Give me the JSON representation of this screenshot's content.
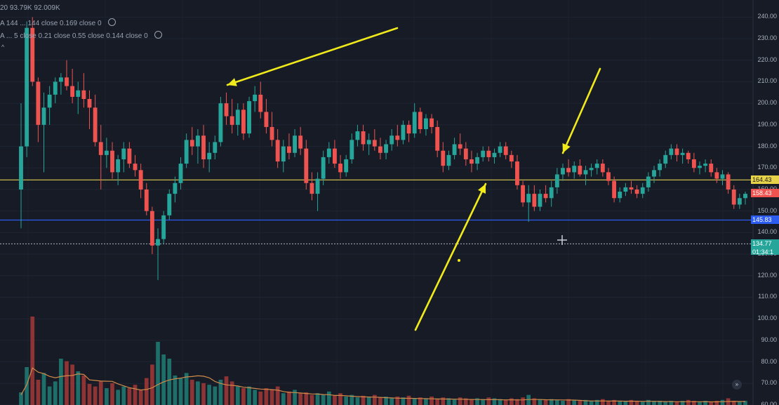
{
  "chart_data": {
    "type": "candlestick",
    "ylim": [
      60,
      245
    ],
    "y_ticks": [
      "240.00",
      "230.00",
      "220.00",
      "210.00",
      "200.00",
      "190.00",
      "180.00",
      "170.00",
      "160.00",
      "150.00",
      "140.00",
      "130.00",
      "120.00",
      "110.00",
      "100.00",
      "90.00",
      "80.00",
      "70.00",
      "60.00"
    ],
    "horizontal_lines": [
      {
        "name": "level-164",
        "price": 164.43,
        "label": "164.43",
        "color": "#c9b84a",
        "tag_bg": "#e6d34a",
        "tag_fg": "#1a1a1a"
      },
      {
        "name": "level-145",
        "price": 145.83,
        "label": "145.83",
        "color": "#2d5cf0",
        "tag_bg": "#2d5cf0",
        "tag_fg": "#ffffff"
      },
      {
        "name": "level-134",
        "price": 134.77,
        "label": "134.77",
        "sublabel": "01:34:1",
        "color": "#9aa3b2",
        "tag_bg": "#26a69a",
        "tag_fg": "#ffffff"
      }
    ],
    "last_price": {
      "label": "158.43",
      "price": 158.43,
      "bg": "#ef5350",
      "fg": "#ffffff"
    },
    "candles": [
      {
        "o": 160,
        "h": 200,
        "l": 142,
        "c": 180
      },
      {
        "o": 180,
        "h": 238,
        "l": 175,
        "c": 235
      },
      {
        "o": 235,
        "h": 240,
        "l": 208,
        "c": 210
      },
      {
        "o": 210,
        "h": 212,
        "l": 182,
        "c": 190
      },
      {
        "o": 190,
        "h": 205,
        "l": 168,
        "c": 198
      },
      {
        "o": 198,
        "h": 208,
        "l": 190,
        "c": 204
      },
      {
        "o": 204,
        "h": 212,
        "l": 200,
        "c": 210
      },
      {
        "o": 210,
        "h": 214,
        "l": 204,
        "c": 212
      },
      {
        "o": 212,
        "h": 220,
        "l": 206,
        "c": 208
      },
      {
        "o": 208,
        "h": 216,
        "l": 200,
        "c": 203
      },
      {
        "o": 203,
        "h": 210,
        "l": 195,
        "c": 206
      },
      {
        "o": 206,
        "h": 214,
        "l": 198,
        "c": 202
      },
      {
        "o": 202,
        "h": 206,
        "l": 188,
        "c": 198
      },
      {
        "o": 198,
        "h": 204,
        "l": 180,
        "c": 182
      },
      {
        "o": 182,
        "h": 190,
        "l": 160,
        "c": 176
      },
      {
        "o": 176,
        "h": 184,
        "l": 170,
        "c": 178
      },
      {
        "o": 178,
        "h": 182,
        "l": 165,
        "c": 168
      },
      {
        "o": 168,
        "h": 176,
        "l": 162,
        "c": 174
      },
      {
        "o": 174,
        "h": 182,
        "l": 168,
        "c": 179
      },
      {
        "o": 179,
        "h": 182,
        "l": 170,
        "c": 172
      },
      {
        "o": 172,
        "h": 176,
        "l": 166,
        "c": 169
      },
      {
        "o": 169,
        "h": 172,
        "l": 156,
        "c": 160
      },
      {
        "o": 160,
        "h": 163,
        "l": 148,
        "c": 150
      },
      {
        "o": 150,
        "h": 152,
        "l": 130,
        "c": 134
      },
      {
        "o": 134,
        "h": 142,
        "l": 118,
        "c": 137
      },
      {
        "o": 137,
        "h": 150,
        "l": 135,
        "c": 148
      },
      {
        "o": 148,
        "h": 160,
        "l": 146,
        "c": 158
      },
      {
        "o": 158,
        "h": 166,
        "l": 154,
        "c": 163
      },
      {
        "o": 163,
        "h": 175,
        "l": 160,
        "c": 172
      },
      {
        "o": 172,
        "h": 186,
        "l": 170,
        "c": 183
      },
      {
        "o": 183,
        "h": 189,
        "l": 176,
        "c": 180
      },
      {
        "o": 180,
        "h": 188,
        "l": 172,
        "c": 185
      },
      {
        "o": 185,
        "h": 190,
        "l": 170,
        "c": 174
      },
      {
        "o": 174,
        "h": 182,
        "l": 168,
        "c": 177
      },
      {
        "o": 177,
        "h": 185,
        "l": 174,
        "c": 182
      },
      {
        "o": 182,
        "h": 203,
        "l": 180,
        "c": 200
      },
      {
        "o": 200,
        "h": 205,
        "l": 190,
        "c": 194
      },
      {
        "o": 194,
        "h": 202,
        "l": 186,
        "c": 190
      },
      {
        "o": 190,
        "h": 200,
        "l": 185,
        "c": 197
      },
      {
        "o": 197,
        "h": 200,
        "l": 183,
        "c": 186
      },
      {
        "o": 186,
        "h": 203,
        "l": 184,
        "c": 201
      },
      {
        "o": 201,
        "h": 208,
        "l": 196,
        "c": 204
      },
      {
        "o": 204,
        "h": 210,
        "l": 193,
        "c": 196
      },
      {
        "o": 196,
        "h": 202,
        "l": 186,
        "c": 189
      },
      {
        "o": 189,
        "h": 196,
        "l": 180,
        "c": 183
      },
      {
        "o": 183,
        "h": 188,
        "l": 170,
        "c": 173
      },
      {
        "o": 173,
        "h": 183,
        "l": 168,
        "c": 180
      },
      {
        "o": 180,
        "h": 186,
        "l": 174,
        "c": 177
      },
      {
        "o": 177,
        "h": 188,
        "l": 175,
        "c": 185
      },
      {
        "o": 185,
        "h": 189,
        "l": 176,
        "c": 179
      },
      {
        "o": 179,
        "h": 183,
        "l": 160,
        "c": 163
      },
      {
        "o": 163,
        "h": 168,
        "l": 155,
        "c": 158
      },
      {
        "o": 158,
        "h": 168,
        "l": 150,
        "c": 165
      },
      {
        "o": 165,
        "h": 178,
        "l": 162,
        "c": 175
      },
      {
        "o": 175,
        "h": 182,
        "l": 172,
        "c": 179
      },
      {
        "o": 179,
        "h": 183,
        "l": 170,
        "c": 172
      },
      {
        "o": 172,
        "h": 176,
        "l": 165,
        "c": 168
      },
      {
        "o": 168,
        "h": 176,
        "l": 166,
        "c": 174
      },
      {
        "o": 174,
        "h": 186,
        "l": 172,
        "c": 183
      },
      {
        "o": 183,
        "h": 190,
        "l": 180,
        "c": 187
      },
      {
        "o": 187,
        "h": 190,
        "l": 178,
        "c": 181
      },
      {
        "o": 181,
        "h": 186,
        "l": 176,
        "c": 183
      },
      {
        "o": 183,
        "h": 188,
        "l": 178,
        "c": 180
      },
      {
        "o": 180,
        "h": 184,
        "l": 174,
        "c": 177
      },
      {
        "o": 177,
        "h": 183,
        "l": 174,
        "c": 181
      },
      {
        "o": 181,
        "h": 188,
        "l": 178,
        "c": 185
      },
      {
        "o": 185,
        "h": 190,
        "l": 180,
        "c": 183
      },
      {
        "o": 183,
        "h": 192,
        "l": 181,
        "c": 190
      },
      {
        "o": 190,
        "h": 192,
        "l": 182,
        "c": 186
      },
      {
        "o": 186,
        "h": 200,
        "l": 184,
        "c": 196
      },
      {
        "o": 196,
        "h": 198,
        "l": 186,
        "c": 188
      },
      {
        "o": 188,
        "h": 195,
        "l": 185,
        "c": 193
      },
      {
        "o": 193,
        "h": 195,
        "l": 186,
        "c": 189
      },
      {
        "o": 189,
        "h": 192,
        "l": 175,
        "c": 178
      },
      {
        "o": 178,
        "h": 182,
        "l": 168,
        "c": 171
      },
      {
        "o": 171,
        "h": 178,
        "l": 169,
        "c": 176
      },
      {
        "o": 176,
        "h": 184,
        "l": 174,
        "c": 181
      },
      {
        "o": 181,
        "h": 186,
        "l": 176,
        "c": 179
      },
      {
        "o": 179,
        "h": 182,
        "l": 171,
        "c": 174
      },
      {
        "o": 174,
        "h": 178,
        "l": 168,
        "c": 172
      },
      {
        "o": 172,
        "h": 177,
        "l": 169,
        "c": 175
      },
      {
        "o": 175,
        "h": 180,
        "l": 173,
        "c": 178
      },
      {
        "o": 178,
        "h": 180,
        "l": 173,
        "c": 175
      },
      {
        "o": 175,
        "h": 179,
        "l": 172,
        "c": 177
      },
      {
        "o": 177,
        "h": 182,
        "l": 175,
        "c": 180
      },
      {
        "o": 180,
        "h": 182,
        "l": 174,
        "c": 176
      },
      {
        "o": 176,
        "h": 178,
        "l": 170,
        "c": 173
      },
      {
        "o": 173,
        "h": 176,
        "l": 160,
        "c": 162
      },
      {
        "o": 162,
        "h": 164,
        "l": 152,
        "c": 154
      },
      {
        "o": 154,
        "h": 162,
        "l": 145,
        "c": 158
      },
      {
        "o": 158,
        "h": 162,
        "l": 150,
        "c": 152
      },
      {
        "o": 152,
        "h": 160,
        "l": 150,
        "c": 158
      },
      {
        "o": 158,
        "h": 162,
        "l": 154,
        "c": 156
      },
      {
        "o": 156,
        "h": 164,
        "l": 152,
        "c": 161
      },
      {
        "o": 161,
        "h": 170,
        "l": 158,
        "c": 167
      },
      {
        "o": 167,
        "h": 172,
        "l": 164,
        "c": 170
      },
      {
        "o": 170,
        "h": 174,
        "l": 166,
        "c": 168
      },
      {
        "o": 168,
        "h": 173,
        "l": 165,
        "c": 171
      },
      {
        "o": 171,
        "h": 174,
        "l": 166,
        "c": 167
      },
      {
        "o": 167,
        "h": 171,
        "l": 162,
        "c": 169
      },
      {
        "o": 169,
        "h": 172,
        "l": 166,
        "c": 170
      },
      {
        "o": 170,
        "h": 174,
        "l": 167,
        "c": 172
      },
      {
        "o": 172,
        "h": 174,
        "l": 166,
        "c": 168
      },
      {
        "o": 168,
        "h": 170,
        "l": 162,
        "c": 164
      },
      {
        "o": 164,
        "h": 166,
        "l": 154,
        "c": 156
      },
      {
        "o": 156,
        "h": 161,
        "l": 154,
        "c": 159
      },
      {
        "o": 159,
        "h": 163,
        "l": 157,
        "c": 161
      },
      {
        "o": 161,
        "h": 164,
        "l": 158,
        "c": 160
      },
      {
        "o": 160,
        "h": 162,
        "l": 156,
        "c": 158
      },
      {
        "o": 158,
        "h": 163,
        "l": 156,
        "c": 161
      },
      {
        "o": 161,
        "h": 168,
        "l": 159,
        "c": 166
      },
      {
        "o": 166,
        "h": 171,
        "l": 163,
        "c": 169
      },
      {
        "o": 169,
        "h": 174,
        "l": 166,
        "c": 172
      },
      {
        "o": 172,
        "h": 178,
        "l": 170,
        "c": 176
      },
      {
        "o": 176,
        "h": 181,
        "l": 174,
        "c": 179
      },
      {
        "o": 179,
        "h": 181,
        "l": 173,
        "c": 176
      },
      {
        "o": 176,
        "h": 179,
        "l": 172,
        "c": 177
      },
      {
        "o": 177,
        "h": 178,
        "l": 172,
        "c": 174
      },
      {
        "o": 174,
        "h": 177,
        "l": 168,
        "c": 170
      },
      {
        "o": 170,
        "h": 173,
        "l": 167,
        "c": 171
      },
      {
        "o": 171,
        "h": 174,
        "l": 168,
        "c": 172
      },
      {
        "o": 172,
        "h": 174,
        "l": 166,
        "c": 168
      },
      {
        "o": 168,
        "h": 170,
        "l": 163,
        "c": 165
      },
      {
        "o": 165,
        "h": 169,
        "l": 162,
        "c": 167
      },
      {
        "o": 167,
        "h": 168,
        "l": 158,
        "c": 160
      },
      {
        "o": 160,
        "h": 162,
        "l": 151,
        "c": 153
      },
      {
        "o": 153,
        "h": 158,
        "l": 151,
        "c": 156
      },
      {
        "o": 156,
        "h": 159,
        "l": 153,
        "c": 158
      }
    ],
    "volumes": [
      15,
      45,
      105,
      30,
      38,
      22,
      28,
      55,
      52,
      48,
      40,
      35,
      25,
      22,
      28,
      20,
      26,
      18,
      22,
      20,
      24,
      18,
      32,
      48,
      75,
      60,
      55,
      35,
      32,
      38,
      30,
      28,
      26,
      24,
      22,
      30,
      34,
      28,
      22,
      20,
      22,
      18,
      16,
      20,
      18,
      22,
      14,
      16,
      18,
      14,
      15,
      12,
      14,
      12,
      16,
      11,
      14,
      10,
      12,
      9,
      11,
      10,
      12,
      9,
      10,
      8,
      10,
      9,
      11,
      8,
      9,
      8,
      10,
      7,
      9,
      8,
      7,
      9,
      8,
      7,
      8,
      7,
      9,
      8,
      7,
      6,
      8,
      7,
      9,
      12,
      8,
      7,
      6,
      7,
      6,
      5,
      7,
      6,
      5,
      6,
      5,
      6,
      7,
      5,
      6,
      5,
      5,
      6,
      5,
      4,
      6,
      5,
      5,
      4,
      5,
      4,
      5,
      6,
      5,
      4,
      5,
      4,
      5,
      6,
      8,
      5,
      4,
      5
    ],
    "indicators": [
      {
        "name": "indicator-line-1",
        "text": "20   93.79K   92.009K"
      },
      {
        "name": "indicator-line-2",
        "text": "A 144 ... 144 close 0.169 close 0"
      },
      {
        "name": "indicator-line-3",
        "text": "A ... 5 close 0.21 close 0.55 close 0.144 close 0"
      }
    ]
  }
}
